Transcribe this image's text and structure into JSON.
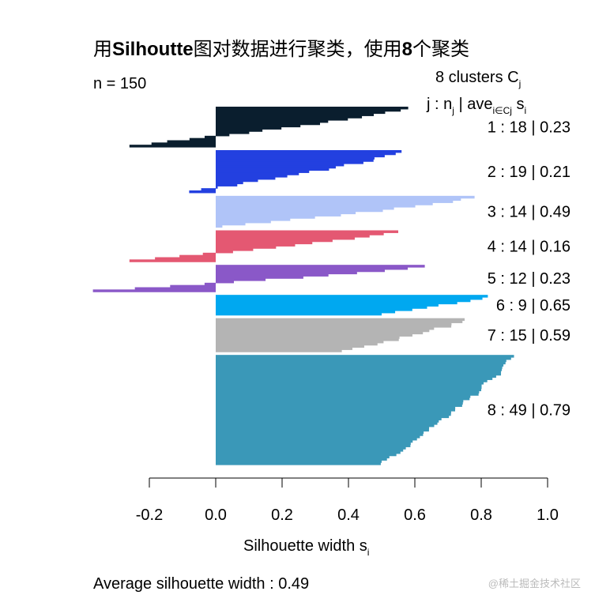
{
  "chart_data": {
    "type": "silhouette",
    "title_part1": "用",
    "title_bold1": "Silhoutte",
    "title_part2": "图对数据进行聚类，使用",
    "title_bold2": "8",
    "title_part3": "个聚类",
    "n_label": "n = 150",
    "header_line1": "8  clusters  C",
    "header_line1_sub": "j",
    "header_j": "j :  n",
    "header_j_sub": "j",
    "header_ave": " | ave",
    "header_ave_sub": "i∈Cj",
    "header_s": "  s",
    "header_s_sub": "i",
    "xlabel": "Silhouette width s",
    "xlabel_sub": "i",
    "xlim": [
      -0.2,
      1.0
    ],
    "xticks": [
      "-0.2",
      "0.0",
      "0.2",
      "0.4",
      "0.6",
      "0.8",
      "1.0"
    ],
    "footer": "Average silhouette width :  0.49",
    "clusters": [
      {
        "id": "1",
        "n": "18",
        "ave": "0.23",
        "color": "#0a1e2e",
        "max": 0.58,
        "min": -0.26
      },
      {
        "id": "2",
        "n": "19",
        "ave": "0.21",
        "color": "#2340e0",
        "max": 0.56,
        "min": -0.08
      },
      {
        "id": "3",
        "n": "14",
        "ave": "0.49",
        "color": "#b0c4f8",
        "max": 0.78,
        "min": 0.02
      },
      {
        "id": "4",
        "n": "14",
        "ave": "0.16",
        "color": "#e45872",
        "max": 0.55,
        "min": -0.26
      },
      {
        "id": "5",
        "n": "12",
        "ave": "0.23",
        "color": "#8a58c8",
        "max": 0.63,
        "min": -0.37
      },
      {
        "id": "6",
        "n": "9",
        "ave": "0.65",
        "color": "#00a8f0",
        "max": 0.82,
        "min": 0.5
      },
      {
        "id": "7",
        "n": "15",
        "ave": "0.59",
        "color": "#b4b4b4",
        "max": 0.75,
        "min": 0.38
      },
      {
        "id": "8",
        "n": "49",
        "ave": "0.79",
        "color": "#3a98b8",
        "max": 0.89,
        "min": 0.5
      }
    ]
  },
  "watermark": "@稀土掘金技术社区"
}
